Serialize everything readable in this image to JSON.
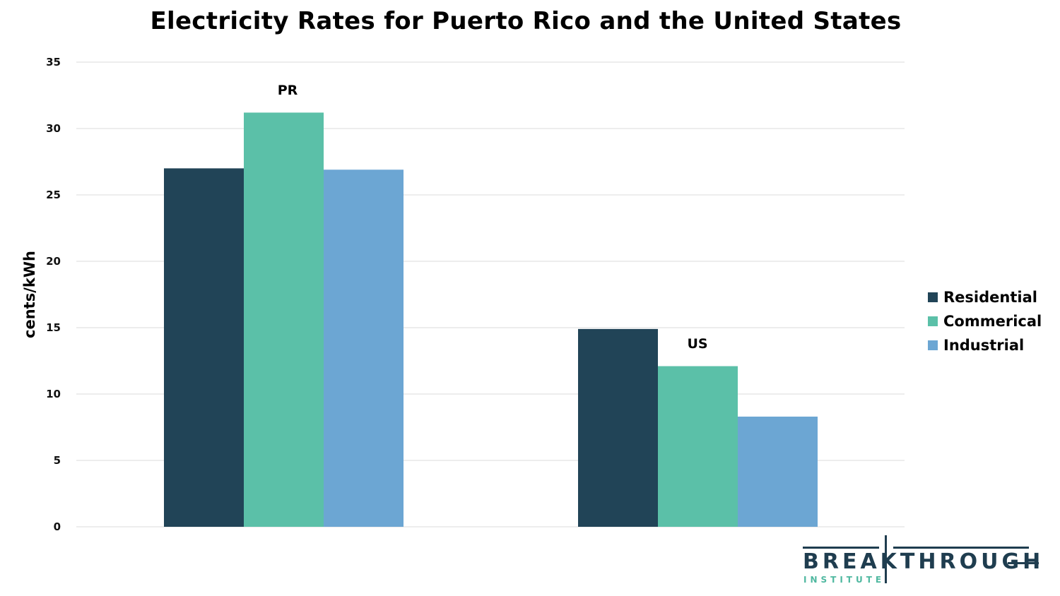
{
  "chart_data": {
    "type": "bar",
    "title": "Electricity Rates for Puerto Rico and the United States",
    "xlabel": "",
    "ylabel": "cents/kWh",
    "ylim": [
      0,
      35
    ],
    "yticks": [
      0,
      5,
      10,
      15,
      20,
      25,
      30,
      35
    ],
    "grid": true,
    "legend_position": "right",
    "categories": [
      "PR",
      "US"
    ],
    "series": [
      {
        "name": "Residential",
        "color": "#214457",
        "values": [
          27.0,
          14.9
        ]
      },
      {
        "name": "Commerical",
        "color": "#5bc0a8",
        "values": [
          31.2,
          12.1
        ]
      },
      {
        "name": "Industrial",
        "color": "#6ca6d3",
        "values": [
          26.9,
          8.3
        ]
      }
    ]
  },
  "logo": {
    "name": "BREAKTHROUGH",
    "subtitle": "INSTITUTE"
  }
}
